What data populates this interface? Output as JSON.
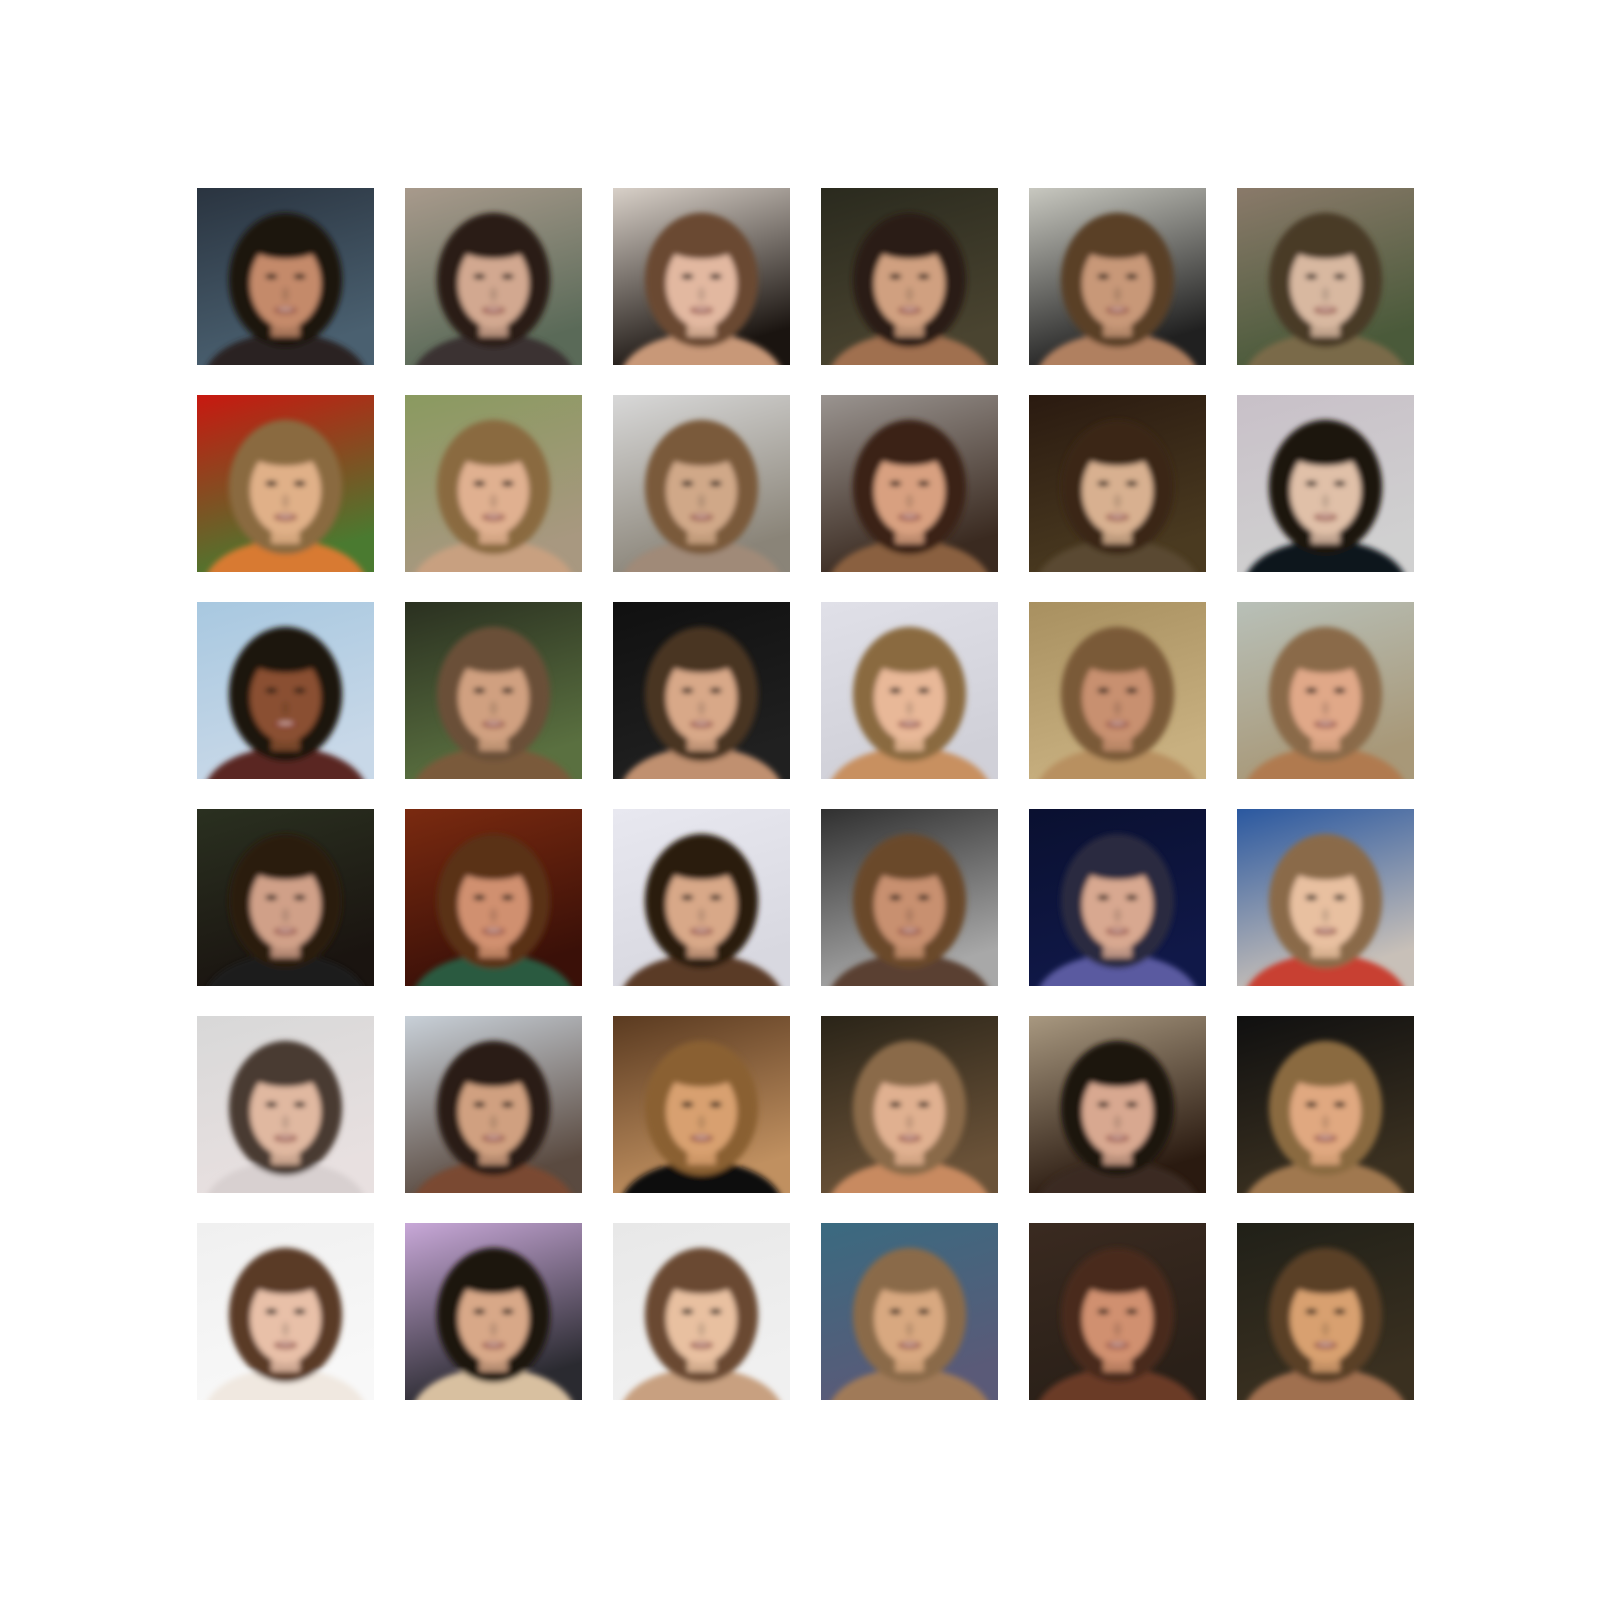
{
  "grid": {
    "rows": 6,
    "columns": 6,
    "tiles": [
      {
        "bg_top": "#2a3440",
        "bg_bottom": "#4a6070",
        "skin": "#c48a6a",
        "hair": "#1c140e",
        "shirt": "#2a2420"
      },
      {
        "bg_top": "#a89a8c",
        "bg_bottom": "#5a6a58",
        "skin": "#d2a890",
        "hair": "#2a1e16",
        "shirt": "#3a3030"
      },
      {
        "bg_top": "#d8d0c8",
        "bg_bottom": "#1a1410",
        "skin": "#e2b8a0",
        "hair": "#6a4a30",
        "shirt": "#c89878"
      },
      {
        "bg_top": "#2a2a1e",
        "bg_bottom": "#4a4430",
        "skin": "#d0a080",
        "hair": "#2a1c12",
        "shirt": "#a07050"
      },
      {
        "bg_top": "#c8c8c0",
        "bg_bottom": "#202020",
        "skin": "#c89878",
        "hair": "#5a4028",
        "shirt": "#b08060"
      },
      {
        "bg_top": "#8a7a6a",
        "bg_bottom": "#4a5a3a",
        "skin": "#d8b8a0",
        "hair": "#4a3a28",
        "shirt": "#7a6a48"
      },
      {
        "bg_top": "#c81810",
        "bg_bottom": "#4a7a30",
        "skin": "#e0b088",
        "hair": "#8a6a40",
        "shirt": "#d87a30"
      },
      {
        "bg_top": "#8a9a60",
        "bg_bottom": "#a89880",
        "skin": "#e0b090",
        "hair": "#8a6a40",
        "shirt": "#c8a080"
      },
      {
        "bg_top": "#d8d8d8",
        "bg_bottom": "#8a8478",
        "skin": "#d0a888",
        "hair": "#7a5a3a",
        "shirt": "#a08a78"
      },
      {
        "bg_top": "#9a9490",
        "bg_bottom": "#3a2a20",
        "skin": "#d8a080",
        "hair": "#3a2414",
        "shirt": "#8a6040"
      },
      {
        "bg_top": "#2a1a10",
        "bg_bottom": "#4a3a20",
        "skin": "#d8b090",
        "hair": "#3a2818",
        "shirt": "#5a4a30"
      },
      {
        "bg_top": "#c8c0c8",
        "bg_bottom": "#d0d0d0",
        "skin": "#e0c0a8",
        "hair": "#1a1210",
        "shirt": "#10141c"
      },
      {
        "bg_top": "#a8c8e0",
        "bg_bottom": "#c8d8e8",
        "skin": "#8a5030",
        "hair": "#1a1208",
        "shirt": "#5a2820"
      },
      {
        "bg_top": "#2a3020",
        "bg_bottom": "#5a7040",
        "skin": "#d0a080",
        "hair": "#6a5038",
        "shirt": "#7a5a3a"
      },
      {
        "bg_top": "#101010",
        "bg_bottom": "#202020",
        "skin": "#d8a888",
        "hair": "#4a3420",
        "shirt": "#c09070"
      },
      {
        "bg_top": "#e0e0e8",
        "bg_bottom": "#d0d0d8",
        "skin": "#e8b898",
        "hair": "#8a6a40",
        "shirt": "#c89060"
      },
      {
        "bg_top": "#a89060",
        "bg_bottom": "#c8b080",
        "skin": "#c89070",
        "hair": "#7a5a38",
        "shirt": "#b89060"
      },
      {
        "bg_top": "#b8c0b8",
        "bg_bottom": "#a89878",
        "skin": "#e0a888",
        "hair": "#8a6a48",
        "shirt": "#b07a50"
      },
      {
        "bg_top": "#2a3020",
        "bg_bottom": "#1a1410",
        "skin": "#d0a088",
        "hair": "#2a1a10",
        "shirt": "#1a1a1a"
      },
      {
        "bg_top": "#7a2a10",
        "bg_bottom": "#3a1008",
        "skin": "#d09070",
        "hair": "#5a3018",
        "shirt": "#2a5a40"
      },
      {
        "bg_top": "#e8e8f0",
        "bg_bottom": "#d8d8e0",
        "skin": "#d8a888",
        "hair": "#2a1a10",
        "shirt": "#5a3a28"
      },
      {
        "bg_top": "#303030",
        "bg_bottom": "#a8a8a8",
        "skin": "#c89070",
        "hair": "#6a4a2a",
        "shirt": "#5a4030"
      },
      {
        "bg_top": "#0a1030",
        "bg_bottom": "#101848",
        "skin": "#d8a890",
        "hair": "#2a2a40",
        "shirt": "#5a5aa0"
      },
      {
        "bg_top": "#2a58a0",
        "bg_bottom": "#c8c0b8",
        "skin": "#e8c0a0",
        "hair": "#8a6a48",
        "shirt": "#c84030"
      },
      {
        "bg_top": "#d8d8d8",
        "bg_bottom": "#e8e0e0",
        "skin": "#e0b8a0",
        "hair": "#4a3a30",
        "shirt": "#d8d0d0"
      },
      {
        "bg_top": "#c8d0d8",
        "bg_bottom": "#5a4a40",
        "skin": "#d0a080",
        "hair": "#2a1a12",
        "shirt": "#7a4a30"
      },
      {
        "bg_top": "#5a3a20",
        "bg_bottom": "#c09060",
        "skin": "#d8a070",
        "hair": "#8a6030",
        "shirt": "#101010"
      },
      {
        "bg_top": "#2a2418",
        "bg_bottom": "#6a5238",
        "skin": "#e0b090",
        "hair": "#8a6a48",
        "shirt": "#c88a60"
      },
      {
        "bg_top": "#a89880",
        "bg_bottom": "#2a1a10",
        "skin": "#d8a890",
        "hair": "#1a120c",
        "shirt": "#3a2a20"
      },
      {
        "bg_top": "#101010",
        "bg_bottom": "#3a3020",
        "skin": "#e0a880",
        "hair": "#8a6a40",
        "shirt": "#a07850"
      },
      {
        "bg_top": "#f0f0f0",
        "bg_bottom": "#f8f8f8",
        "skin": "#e8c0a8",
        "hair": "#5a3a28",
        "shirt": "#f0e8e0"
      },
      {
        "bg_top": "#c8a8d8",
        "bg_bottom": "#2a2a30",
        "skin": "#d8a888",
        "hair": "#1a120c",
        "shirt": "#d8c0a0"
      },
      {
        "bg_top": "#e8e8e8",
        "bg_bottom": "#f0f0f0",
        "skin": "#e8c0a0",
        "hair": "#6a4a30",
        "shirt": "#c8a080"
      },
      {
        "bg_top": "#3a6a80",
        "bg_bottom": "#5a5a78",
        "skin": "#d8a880",
        "hair": "#8a6a48",
        "shirt": "#a07a58"
      },
      {
        "bg_top": "#3a2a20",
        "bg_bottom": "#2a2018",
        "skin": "#d09070",
        "hair": "#4a2a1a",
        "shirt": "#6a3a28"
      },
      {
        "bg_top": "#202018",
        "bg_bottom": "#3a3020",
        "skin": "#d8a070",
        "hair": "#5a4028",
        "shirt": "#a07050"
      }
    ]
  }
}
